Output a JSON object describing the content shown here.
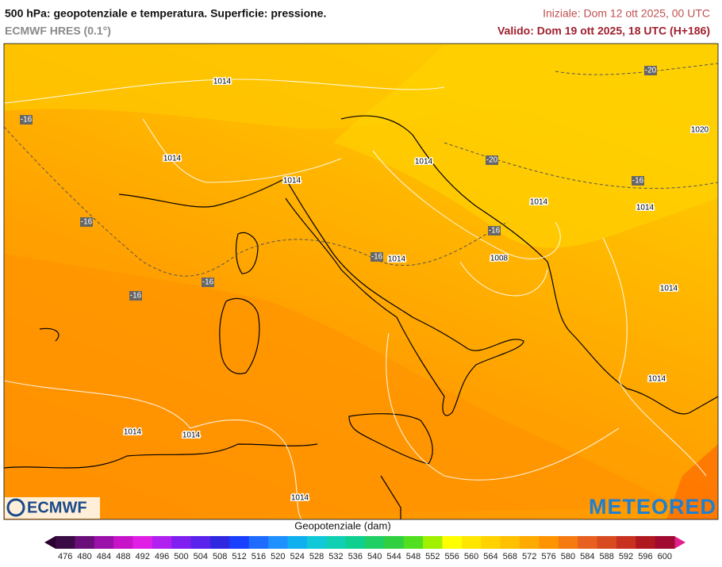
{
  "header": {
    "title": "500 hPa: geopotenziale e temperatura. Superficie: pressione.",
    "subtitle": "ECMWF HRES (0.1°)",
    "init": "Iniziale: Dom 12 ott 2025, 00 UTC",
    "valid": "Valido: Dom 19 ott 2025, 18 UTC (H+186)"
  },
  "map": {
    "pressure_labels": [
      "1014",
      "1014",
      "1014",
      "1014",
      "1014",
      "1014",
      "1014",
      "1014",
      "1014",
      "1014",
      "1014",
      "1014",
      "1008",
      "1020"
    ],
    "temperature_labels": [
      "-16",
      "-16",
      "-16",
      "-16",
      "-16",
      "-16",
      "-16",
      "-20",
      "-20"
    ]
  },
  "logos": {
    "left": "ECMWF",
    "right": "METEORED"
  },
  "colorbar": {
    "title": "Geopotenziale (dam)",
    "ticks": [
      476,
      480,
      484,
      488,
      492,
      496,
      500,
      504,
      508,
      512,
      516,
      520,
      524,
      528,
      532,
      536,
      540,
      544,
      548,
      552,
      556,
      560,
      564,
      568,
      572,
      576,
      580,
      584,
      588,
      592,
      596,
      600
    ],
    "colors": [
      "#3b0b45",
      "#6a0f7a",
      "#9a10a8",
      "#c714c9",
      "#e01ee6",
      "#b020f0",
      "#8020f0",
      "#5a22ec",
      "#3028e0",
      "#1a40ff",
      "#1e6cff",
      "#1e90ff",
      "#10b0f0",
      "#10c8d8",
      "#10d0b4",
      "#10d090",
      "#20d064",
      "#30d040",
      "#50e020",
      "#a0f000",
      "#ffff00",
      "#ffe600",
      "#ffd200",
      "#ffc000",
      "#ffaa00",
      "#ff9400",
      "#f57a10",
      "#e86020",
      "#d84a20",
      "#c83020",
      "#b01820",
      "#a00a30"
    ],
    "under_color": "#2a0030",
    "over_color": "#e0208c"
  }
}
